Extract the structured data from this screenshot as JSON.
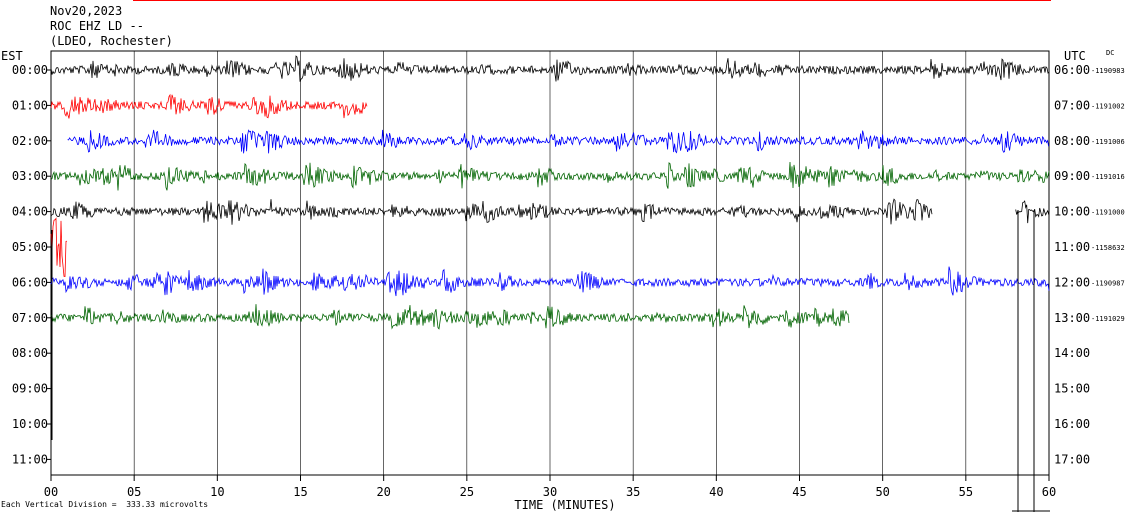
{
  "header": {
    "line1": "Nov20,2023",
    "line2": "ROC EHZ LD --",
    "line3": "(LDEO, Rochester)"
  },
  "left_axis_title": "EST",
  "right_axis_title": "UTC",
  "dc_title": "DC",
  "footnote": "Each Vertical Division =  333.33 microvolts",
  "colors": {
    "black": "#000000",
    "red": "#ff0000",
    "blue": "#0000ff",
    "green": "#006400"
  },
  "chart_data": {
    "type": "line",
    "title": "Nov20,2023 ROC EHZ LD -- (LDEO, Rochester)",
    "xlabel": "TIME (MINUTES)",
    "xlim": [
      0,
      60
    ],
    "x_ticks": [
      "00",
      "05",
      "10",
      "15",
      "20",
      "25",
      "30",
      "35",
      "40",
      "45",
      "50",
      "55",
      "60"
    ],
    "grid": true,
    "rows": [
      {
        "est": "00:00",
        "utc": "06:00",
        "dc": "-1190983",
        "color": "black",
        "start": 0,
        "end": 60
      },
      {
        "est": "01:00",
        "utc": "07:00",
        "dc": "-1191002",
        "color": "red",
        "start": 0,
        "end": 19
      },
      {
        "est": "02:00",
        "utc": "08:00",
        "dc": "-1191006",
        "color": "blue",
        "start": 1,
        "end": 60
      },
      {
        "est": "03:00",
        "utc": "09:00",
        "dc": "-1191016",
        "color": "green",
        "start": 0,
        "end": 60
      },
      {
        "est": "04:00",
        "utc": "10:00",
        "dc": "-1191000",
        "color": "black",
        "start": 0,
        "end": 53
      },
      {
        "est": "05:00",
        "utc": "11:00",
        "dc": "-1158632",
        "color": "red",
        "start": 0,
        "end": 1
      },
      {
        "est": "06:00",
        "utc": "12:00",
        "dc": "-1190987",
        "color": "blue",
        "start": 0,
        "end": 60
      },
      {
        "est": "07:00",
        "utc": "13:00",
        "dc": "-1191029",
        "color": "green",
        "start": 0,
        "end": 48
      },
      {
        "est": "08:00",
        "utc": "14:00",
        "dc": "",
        "color": "black",
        "start": 0,
        "end": 0
      },
      {
        "est": "09:00",
        "utc": "15:00",
        "dc": "",
        "color": "black",
        "start": 0,
        "end": 0
      },
      {
        "est": "10:00",
        "utc": "16:00",
        "dc": "",
        "color": "black",
        "start": 0,
        "end": 0
      },
      {
        "est": "11:00",
        "utc": "17:00",
        "dc": "",
        "color": "black",
        "start": 0,
        "end": 0
      }
    ],
    "extra_segments": [
      {
        "row": 4,
        "color": "black",
        "start": 58,
        "end": 60
      }
    ]
  }
}
